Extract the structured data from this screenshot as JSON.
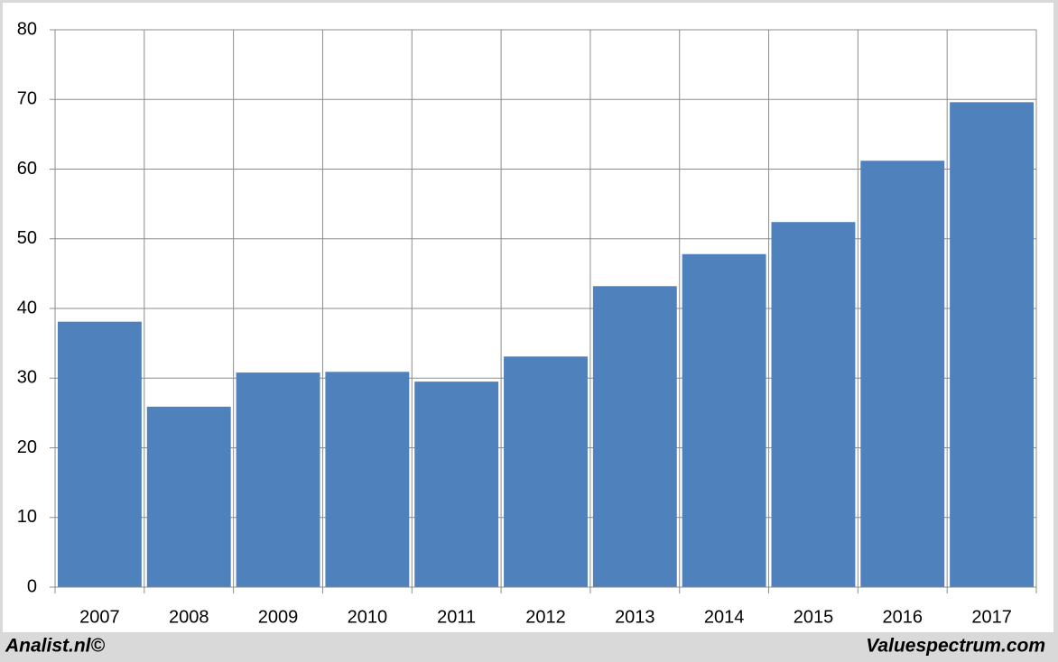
{
  "chart_data": {
    "type": "bar",
    "categories": [
      "2007",
      "2008",
      "2009",
      "2010",
      "2011",
      "2012",
      "2013",
      "2014",
      "2015",
      "2016",
      "2017"
    ],
    "values": [
      38.1,
      25.9,
      30.8,
      30.9,
      29.5,
      33.1,
      43.2,
      47.8,
      52.4,
      61.2,
      69.6
    ],
    "color": "#4f81bd",
    "ylim": [
      0,
      80
    ],
    "yticks": [
      0,
      10,
      20,
      30,
      40,
      50,
      60,
      70,
      80
    ],
    "grid": true
  },
  "footer": {
    "left": "Analist.nl©",
    "right": "Valuespectrum.com"
  }
}
